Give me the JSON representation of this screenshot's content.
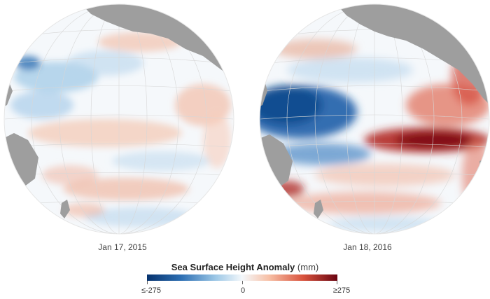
{
  "panels": [
    {
      "date": "Jan 17, 2015",
      "anomaly": "weak"
    },
    {
      "date": "Jan 18, 2016",
      "anomaly": "strong"
    }
  ],
  "legend": {
    "title": "Sea Surface Height Anomaly",
    "units": "(mm)",
    "min_label": "≤-275",
    "mid_label": "0",
    "max_label": "≥275",
    "range": [
      -275,
      275
    ]
  },
  "colors": {
    "land": "#9e9e9e",
    "neutral": "#f5f8fb",
    "negative": "#1f5ea8",
    "positive": "#c8322b",
    "grid": "#d7d7d7"
  }
}
